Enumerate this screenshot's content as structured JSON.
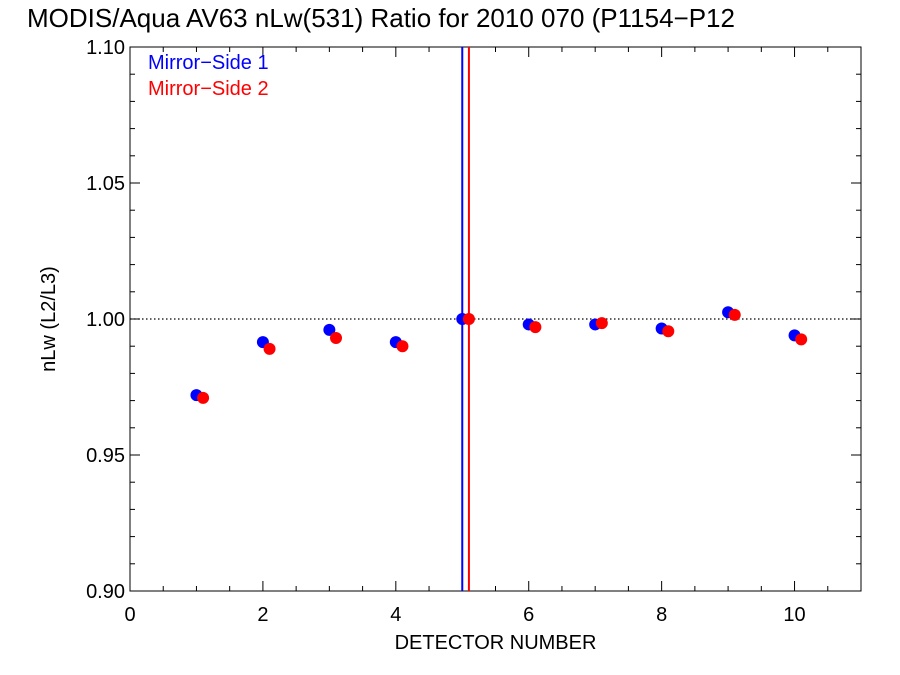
{
  "chart_data": {
    "type": "scatter",
    "title": "MODIS/Aqua AV63 nLw(531) Ratio for 2010 070 (P1154−P12",
    "xlabel": "DETECTOR NUMBER",
    "ylabel": "nLw (L2/L3)",
    "xlim": [
      0,
      11
    ],
    "ylim": [
      0.9,
      1.1
    ],
    "xticks": [
      0,
      2,
      4,
      6,
      8,
      10
    ],
    "xtick_labels": [
      "0",
      "2",
      "4",
      "6",
      "8",
      "10"
    ],
    "yticks": [
      0.9,
      0.95,
      1.0,
      1.05,
      1.1
    ],
    "ytick_labels": [
      "0.90",
      "0.95",
      "1.00",
      "1.05",
      "1.10"
    ],
    "grid": false,
    "legend_position": "top-left",
    "reference_line": {
      "y": 1.0,
      "style": "dotted",
      "color": "#000000"
    },
    "vertical_lines": [
      {
        "x": 5.0,
        "color": "#0000ff"
      },
      {
        "x": 5.1,
        "color": "#ff0000"
      }
    ],
    "series": [
      {
        "name": "Mirror−Side 1",
        "color": "#0000ff",
        "x": [
          1,
          2,
          3,
          4,
          5,
          6,
          7,
          8,
          9,
          10
        ],
        "y": [
          0.972,
          0.9915,
          0.996,
          0.9915,
          1.0,
          0.998,
          0.998,
          0.9965,
          1.0025,
          0.994
        ]
      },
      {
        "name": "Mirror−Side 2",
        "color": "#ff0000",
        "x": [
          1.1,
          2.1,
          3.1,
          4.1,
          5.1,
          6.1,
          7.1,
          8.1,
          9.1,
          10.1
        ],
        "y": [
          0.971,
          0.989,
          0.993,
          0.99,
          1.0,
          0.997,
          0.9985,
          0.9955,
          1.0015,
          0.9925
        ]
      }
    ]
  }
}
